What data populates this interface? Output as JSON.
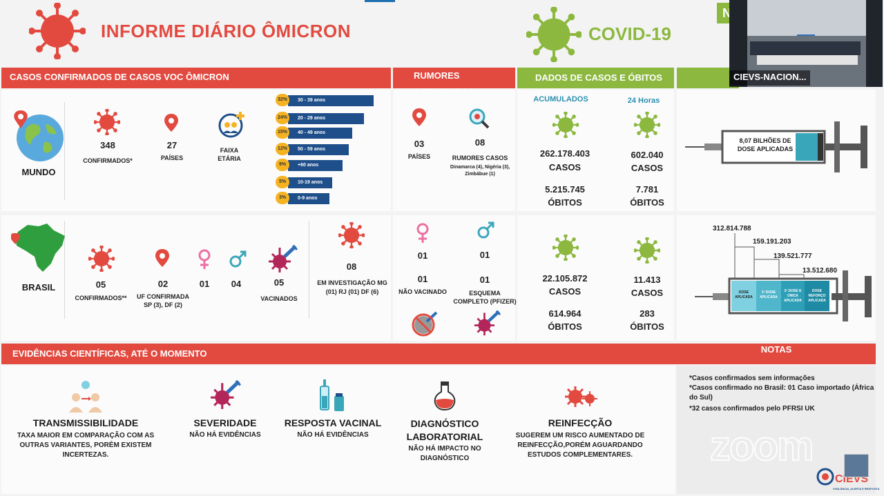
{
  "header": {
    "title": "INFORME DIÁRIO ÔMICRON",
    "covid_title": "COVID-19",
    "corner_badge": "N"
  },
  "sections": {
    "omicron": "CASOS CONFIRMADOS DE CASOS VOC ÔMICRON",
    "rumors": "RUMORES DETECTADOS",
    "cases": "DADOS DE CASOS E ÓBITOS",
    "evidence": "EVIDÊNCIAS CIENTÍFICAS, ATÉ O MOMENTO",
    "notes": "NOTAS"
  },
  "world": {
    "label": "MUNDO",
    "confirmed_value": "348",
    "confirmed_label": "CONFIRMADOS*",
    "countries_value": "27",
    "countries_label": "PAÍSES",
    "age_label": "FAIXA ETÁRIA",
    "age_groups": [
      {
        "pct": "32%",
        "label": "30 - 39 anos",
        "value": 32
      },
      {
        "pct": "24%",
        "label": "20 - 29 anos",
        "value": 24
      },
      {
        "pct": "15%",
        "label": "40 - 49 anos",
        "value": 15
      },
      {
        "pct": "12%",
        "label": "50 - 59 anos",
        "value": 12
      },
      {
        "pct": "9%",
        "label": "+60 anos",
        "value": 9
      },
      {
        "pct": "5%",
        "label": "10-19 anos",
        "value": 5
      },
      {
        "pct": "3%",
        "label": "0-9 anos",
        "value": 3
      }
    ],
    "rumors_countries_value": "03",
    "rumors_countries_label": "PAÍSES",
    "rumors_value": "08",
    "rumors_label": "RUMORES CASOS",
    "rumors_detail": "Dinamarca (4), Nigéria (3), Zimbábue (1)",
    "acum_header": "ACUMULADOS",
    "h24_header": "24 Horas",
    "acum_cases": "262.178.403",
    "acum_deaths": "5.215.745",
    "h24_cases": "602.040",
    "h24_deaths": "7.781",
    "cases_label": "CASOS",
    "deaths_label": "ÓBITOS",
    "doses_text": "8,07 BILHÕES DE DOSE APLICADAS"
  },
  "brasil": {
    "label": "BRASIL",
    "confirmed_value": "05",
    "confirmed_label": "CONFIRMADOS**",
    "uf_value": "02",
    "uf_label": "UF CONFIRMADA",
    "uf_detail": "SP (3), DF (2)",
    "female_value": "01",
    "male_value": "04",
    "vaccinated_value": "05",
    "vaccinated_label": "VACINADOS",
    "investigation_value": "08",
    "investigation_label": "EM INVESTIGAÇÃO MG (01) RJ (01) DF (6)",
    "female_top": "01",
    "male_top": "01",
    "not_vaccinated_value": "01",
    "not_vaccinated_label": "NÃO VACINADO",
    "complete_value": "01",
    "complete_label": "ESQUEMA COMPLETO (PFIZER)",
    "acum_cases": "22.105.872",
    "acum_deaths": "614.964",
    "h24_cases": "11.413",
    "h24_deaths": "283",
    "dose_values": [
      "312.814.788",
      "159.191.203",
      "139.521.777",
      "13.512.680"
    ],
    "dose_labels": [
      "DOSE APLICADA",
      "1ª DOSE APLICADA",
      "2ª DOSE E ÚNICA APLICADA",
      "DOSE REFORÇO APLICADA"
    ]
  },
  "evidence": [
    {
      "title": "TRANSMISSIBILIDADE",
      "text": "TAXA MAIOR EM COMPARAÇÃO COM AS OUTRAS VARIANTES, PORÉM EXISTEM INCERTEZAS."
    },
    {
      "title": "SEVERIDADE",
      "text": "NÃO HÁ EVIDÊNCIAS"
    },
    {
      "title": "RESPOSTA VACINAL",
      "text": "NÃO HÁ EVIDÊNCIAS"
    },
    {
      "title": "DIAGNÓSTICO LABORATORIAL",
      "text": "NÃO HÁ IMPACTO NO DIAGNÓSTICO"
    },
    {
      "title": "REINFECÇÃO",
      "text": "SUGEREM UM RISCO AUMENTADO DE REINFECÇÃO,PORÉM AGUARDANDO ESTUDOS COMPLEMENTARES."
    }
  ],
  "notes": [
    "*Casos confirmados sem informações",
    "*Casos confirmado no Brasil: 01 Caso importado (África do Sul)",
    "*32 casos confirmados pelo PFRSI UK"
  ],
  "video": {
    "name": "CIEVS-NACION..."
  },
  "watermark": "zoom",
  "logo_text": "CIEVS",
  "logo_sub": "VIGILÂNCIA, ALERTA E RESPOSTA",
  "colors": {
    "red": "#e24a40",
    "green": "#8cb83f",
    "navy": "#1e4f8a",
    "orange": "#f5b323",
    "teal": "#3aa6b9"
  }
}
